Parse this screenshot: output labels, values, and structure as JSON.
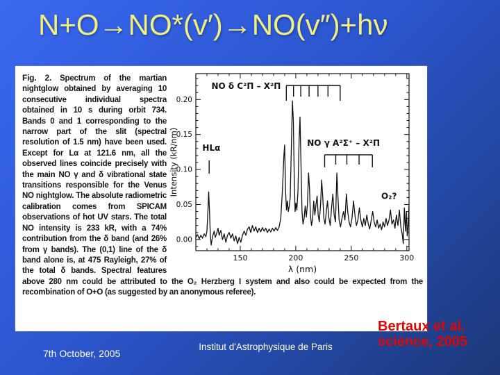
{
  "slide": {
    "title": "N+O→NO*(v′)→NO(v″)+hν",
    "footer": {
      "date": "7th October, 2005",
      "institute": "Institut d'Astrophysique de Paris",
      "citation_line1": "Bertaux et al.",
      "citation_line2": "science, 2005"
    },
    "colors": {
      "background_top_left": "#3a68f0",
      "background_bottom_right": "#1c3878",
      "title_text": "#efef82",
      "footer_text": "#ffffd0",
      "citation_text": "#dd0600",
      "figure_background": "#ffffff",
      "spectrum_line": "#111111"
    }
  },
  "figure": {
    "caption_label": "Fig. 2.",
    "caption_text": "Spectrum of the martian nightglow obtained by averaging 10 consecutive individual spectra obtained in 10 s during orbit 734. Bands 0 and 1 corresponding to the narrow part of the slit (spectral resolution of 1.5 nm) have been used. Except for Lα at 121.6 nm, all the observed lines coincide precisely with the main NO γ and δ vibrational state transitions responsible for the Venus NO nightglow. The absolute radiometric calibration comes from SPICAM observations of hot UV stars. The total NO intensity is 233 kR, with a 74% contribution from the δ band (and 26% from γ bands). The (0,1) line of the δ band alone is, at 475 Rayleigh, 27% of the total δ bands. Spectral features above 280 nm could be attributed to the O₂ Herzberg I system and also could be expected from the recombination of O+O (as suggested by an anonymous referee)."
  },
  "chart_data": {
    "type": "line",
    "title": "",
    "xlabel": "λ (nm)",
    "ylabel": "Intensity (kR/nm)",
    "xlim": [
      110,
      302
    ],
    "ylim": [
      -0.016,
      0.237
    ],
    "x_ticks": [
      150,
      200,
      250,
      300
    ],
    "y_ticks": [
      0,
      0.05,
      0.1,
      0.15,
      0.2
    ],
    "x_minor_step": 10,
    "y_minor_step": 0.01,
    "grid": false,
    "legend": false,
    "series": [
      {
        "name": "Martian NO nightglow spectrum (orbit 734 average)",
        "points": [
          [
            110,
            0.003
          ],
          [
            111.5,
            0.007
          ],
          [
            113,
            0.001
          ],
          [
            114.5,
            0.006
          ],
          [
            116,
            0.002
          ],
          [
            117.5,
            0.008
          ],
          [
            119,
            0.004
          ],
          [
            120,
            0.012
          ],
          [
            121,
            0.045
          ],
          [
            121.6,
            0.068
          ],
          [
            122.3,
            0.04
          ],
          [
            123,
            0.008
          ],
          [
            123.8,
            -0.008
          ],
          [
            125,
            0.004
          ],
          [
            126.5,
            0.012
          ],
          [
            127.5,
            0.003
          ],
          [
            129,
            0.01
          ],
          [
            130,
            0.016
          ],
          [
            131,
            0.006
          ],
          [
            132.5,
            0.013
          ],
          [
            134,
            0.0
          ],
          [
            135.5,
            0.008
          ],
          [
            137,
            -0.004
          ],
          [
            138.5,
            0.006
          ],
          [
            140,
            0.01
          ],
          [
            141.5,
            0.002
          ],
          [
            143,
            0.008
          ],
          [
            144.5,
            -0.002
          ],
          [
            146,
            0.005
          ],
          [
            147.5,
            -0.006
          ],
          [
            149,
            0.003
          ],
          [
            150.5,
            -0.004
          ],
          [
            152,
            0.006
          ],
          [
            153.5,
            0.012
          ],
          [
            155,
            0.006
          ],
          [
            156.5,
            0.015
          ],
          [
            158,
            0.018
          ],
          [
            159.5,
            0.01
          ],
          [
            161,
            0.02
          ],
          [
            162.5,
            0.012
          ],
          [
            164,
            0.018
          ],
          [
            165.5,
            0.01
          ],
          [
            167,
            0.016
          ],
          [
            168.5,
            0.011
          ],
          [
            170,
            0.017
          ],
          [
            171.5,
            0.012
          ],
          [
            173,
            0.016
          ],
          [
            174.5,
            0.01
          ],
          [
            176,
            0.015
          ],
          [
            177.5,
            0.011
          ],
          [
            179,
            0.016
          ],
          [
            180.5,
            0.012
          ],
          [
            182,
            0.017
          ],
          [
            183.5,
            0.013
          ],
          [
            185,
            0.018
          ],
          [
            186.5,
            0.03
          ],
          [
            188,
            0.07
          ],
          [
            189.3,
            0.12
          ],
          [
            190,
            0.135
          ],
          [
            190.8,
            0.07
          ],
          [
            191.6,
            0.042
          ],
          [
            192.5,
            0.055
          ],
          [
            193.3,
            0.04
          ],
          [
            194.2,
            0.048
          ],
          [
            195,
            0.06
          ],
          [
            196,
            0.13
          ],
          [
            197,
            0.198
          ],
          [
            197.8,
            0.17
          ],
          [
            198.6,
            0.09
          ],
          [
            199.4,
            0.04
          ],
          [
            200.2,
            0.052
          ],
          [
            201,
            0.042
          ],
          [
            202,
            0.07
          ],
          [
            203,
            0.14
          ],
          [
            203.8,
            0.175
          ],
          [
            204.8,
            0.1
          ],
          [
            205.6,
            0.04
          ],
          [
            206.5,
            0.022
          ],
          [
            207.5,
            0.03
          ],
          [
            208.5,
            0.048
          ],
          [
            209.5,
            0.032
          ],
          [
            210.5,
            0.05
          ],
          [
            211.5,
            0.095
          ],
          [
            212.3,
            0.075
          ],
          [
            213.2,
            0.035
          ],
          [
            214.2,
            0.02
          ],
          [
            215.2,
            0.03
          ],
          [
            216.2,
            0.055
          ],
          [
            217.2,
            0.035
          ],
          [
            218.2,
            0.05
          ],
          [
            219.2,
            0.062
          ],
          [
            220.2,
            0.035
          ],
          [
            221.2,
            0.025
          ],
          [
            222.3,
            0.05
          ],
          [
            223.3,
            0.085
          ],
          [
            224.3,
            0.06
          ],
          [
            225.3,
            0.03
          ],
          [
            226.4,
            0.022
          ],
          [
            227.5,
            0.04
          ],
          [
            228.6,
            0.055
          ],
          [
            229.7,
            0.032
          ],
          [
            231,
            0.02
          ],
          [
            232.2,
            0.045
          ],
          [
            233.4,
            0.065
          ],
          [
            234.6,
            0.035
          ],
          [
            235.8,
            0.025
          ],
          [
            237,
            0.095
          ],
          [
            238,
            0.06
          ],
          [
            239,
            0.028
          ],
          [
            240.3,
            0.018
          ],
          [
            241.6,
            0.03
          ],
          [
            243,
            0.04
          ],
          [
            244.3,
            0.028
          ],
          [
            245.6,
            0.065
          ],
          [
            246.8,
            0.04
          ],
          [
            248,
            0.025
          ],
          [
            249.3,
            0.018
          ],
          [
            250.6,
            0.03
          ],
          [
            252,
            0.055
          ],
          [
            253.3,
            0.035
          ],
          [
            254.6,
            0.02
          ],
          [
            256,
            0.028
          ],
          [
            257.3,
            0.045
          ],
          [
            258.6,
            0.028
          ],
          [
            260,
            0.018
          ],
          [
            261.3,
            0.03
          ],
          [
            262.6,
            0.02
          ],
          [
            264,
            0.035
          ],
          [
            265.3,
            0.022
          ],
          [
            266.6,
            0.015
          ],
          [
            268,
            0.028
          ],
          [
            269.3,
            0.04
          ],
          [
            270.6,
            0.025
          ],
          [
            272,
            0.018
          ],
          [
            273.3,
            0.028
          ],
          [
            274.6,
            0.016
          ],
          [
            276,
            0.022
          ],
          [
            277.3,
            0.014
          ],
          [
            278.6,
            0.025
          ],
          [
            280,
            0.018
          ],
          [
            281.3,
            0.03
          ],
          [
            282.6,
            0.02
          ],
          [
            284,
            0.028
          ],
          [
            285.3,
            0.042
          ],
          [
            286.6,
            0.022
          ],
          [
            288,
            0.028
          ],
          [
            289.3,
            0.016
          ],
          [
            290.6,
            0.035
          ],
          [
            292,
            0.02
          ],
          [
            293.3,
            0.042
          ],
          [
            294.6,
            0.018
          ],
          [
            295.8,
            0.008
          ],
          [
            296.8,
            -0.006
          ],
          [
            297.8,
            0.045
          ],
          [
            298.8,
            0.012
          ],
          [
            299.6,
            0.04
          ],
          [
            300.4,
            0.005
          ],
          [
            301.2,
            0.02
          ],
          [
            302,
            0.048
          ]
        ]
      }
    ],
    "annotations": {
      "h_lyman_alpha": {
        "text": "HLα",
        "x": 124,
        "y": 0.127,
        "marker_x": 122,
        "marker_y1": 0.094,
        "marker_y2": 0.113
      },
      "delta_band_comb": {
        "text": "NO δ C²Π – X²Π",
        "label_x": 189,
        "bar_y": 0.22,
        "ticks_x": [
          191.5,
          198,
          204.5,
          212,
          220,
          229,
          240
        ]
      },
      "gamma_band_comb": {
        "text": "NO γ A²Σ⁺ – X²Π",
        "label_x": 243,
        "bar_y": 0.121,
        "ticks_x": [
          226,
          236,
          246,
          257,
          269
        ]
      },
      "o2_feature": {
        "text": "O₂?",
        "x": 284,
        "y": 0.058
      }
    }
  }
}
